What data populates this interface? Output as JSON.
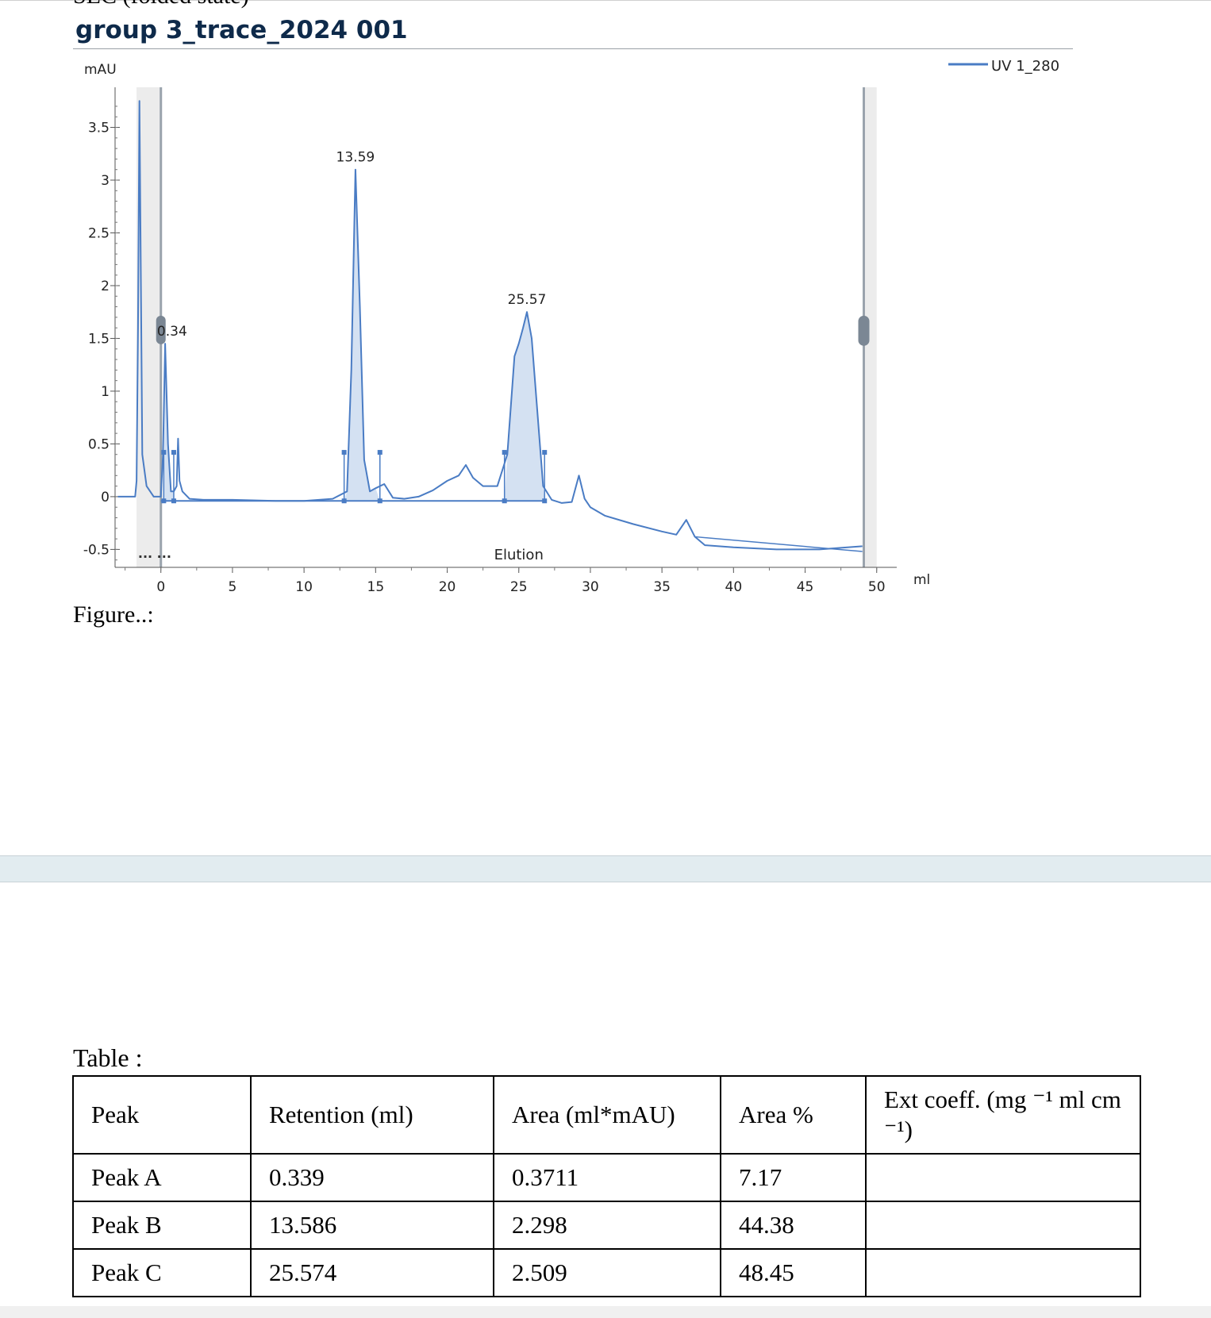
{
  "document": {
    "section_title": "SEC (folded state)",
    "run_title": "group 3_trace_2024 001",
    "figure_caption": "Figure..:",
    "table_label": "Table :"
  },
  "chart_data": {
    "type": "line",
    "title": "group 3_trace_2024 001",
    "xlabel": "ml",
    "ylabel": "mAU",
    "xlim": [
      -3.2,
      51.4
    ],
    "ylim": [
      -0.67,
      3.88
    ],
    "x_ticks": [
      0,
      5,
      10,
      15,
      20,
      25,
      30,
      35,
      40,
      45,
      50
    ],
    "y_ticks": [
      -0.5,
      0,
      0.5,
      1,
      1.5,
      2,
      2.5,
      3,
      3.5
    ],
    "x_tick_labels": [
      "0",
      "5",
      "10",
      "15",
      "20",
      "25",
      "30",
      "35",
      "40",
      "45",
      "50"
    ],
    "y_tick_labels": [
      "-0.5",
      "0",
      "0.5",
      "1",
      "1.5",
      "2",
      "2.5",
      "3",
      "3.5"
    ],
    "legend_position": "top-right",
    "region_label": "Elution",
    "injection_marks": "... ...",
    "series": [
      {
        "name": "UV 1_280",
        "color": "#4a7cc4",
        "x": [
          -3.0,
          -1.8,
          -1.7,
          -1.6,
          -1.5,
          -1.3,
          -1.0,
          -0.5,
          0.0,
          0.15,
          0.3,
          0.5,
          0.7,
          0.9,
          1.1,
          1.2,
          1.3,
          1.5,
          2.0,
          3.0,
          5.0,
          8.0,
          10.0,
          12.0,
          13.0,
          13.3,
          13.59,
          13.9,
          14.2,
          14.6,
          15.0,
          15.6,
          16.2,
          17.0,
          18.0,
          19.0,
          20.0,
          20.8,
          21.3,
          21.8,
          22.5,
          23.5,
          24.2,
          24.7,
          25.0,
          25.3,
          25.57,
          25.9,
          26.3,
          26.7,
          27.3,
          28.0,
          28.7,
          29.2,
          29.6,
          30.0,
          31.0,
          33.0,
          35.0,
          36.0,
          36.7,
          37.3,
          38.0,
          40.0,
          43.0,
          46.0,
          49.0
        ],
        "y": [
          0.0,
          0.0,
          0.15,
          1.6,
          3.75,
          0.4,
          0.1,
          0.0,
          0.0,
          0.4,
          1.45,
          0.5,
          0.05,
          0.05,
          0.1,
          0.55,
          0.15,
          0.05,
          -0.02,
          -0.03,
          -0.03,
          -0.04,
          -0.04,
          -0.02,
          0.05,
          1.2,
          3.1,
          1.8,
          0.35,
          0.05,
          0.08,
          0.12,
          -0.01,
          -0.02,
          0.0,
          0.06,
          0.15,
          0.2,
          0.3,
          0.18,
          0.1,
          0.1,
          0.4,
          1.33,
          1.45,
          1.6,
          1.75,
          1.5,
          0.8,
          0.1,
          -0.03,
          -0.06,
          -0.05,
          0.2,
          -0.02,
          -0.1,
          -0.18,
          -0.26,
          -0.33,
          -0.36,
          -0.22,
          -0.38,
          -0.46,
          -0.48,
          -0.5,
          -0.5,
          -0.47
        ]
      }
    ],
    "peak_labels": [
      {
        "label": "0.34",
        "x": 0.34,
        "y": 1.45
      },
      {
        "label": "13.59",
        "x": 13.59,
        "y": 3.1
      },
      {
        "label": "25.57",
        "x": 25.57,
        "y": 1.75
      }
    ],
    "integrated_peaks": [
      {
        "start": 0.2,
        "end": 0.9,
        "baseline": -0.04
      },
      {
        "start": 12.8,
        "end": 15.3,
        "baseline": -0.04
      },
      {
        "start": 24.0,
        "end": 26.8,
        "baseline": -0.04
      }
    ]
  },
  "table": {
    "headers": [
      "Peak",
      "Retention (ml)",
      "Area (ml*mAU)",
      "Area %",
      "Ext coeff. (mg ⁻¹ ml cm ⁻¹)"
    ],
    "rows": [
      [
        "Peak A",
        "0.339",
        "0.3711",
        "7.17",
        ""
      ],
      [
        "Peak B",
        "13.586",
        "2.298",
        "44.38",
        ""
      ],
      [
        "Peak C",
        "25.574",
        "2.509",
        "48.45",
        ""
      ]
    ]
  }
}
